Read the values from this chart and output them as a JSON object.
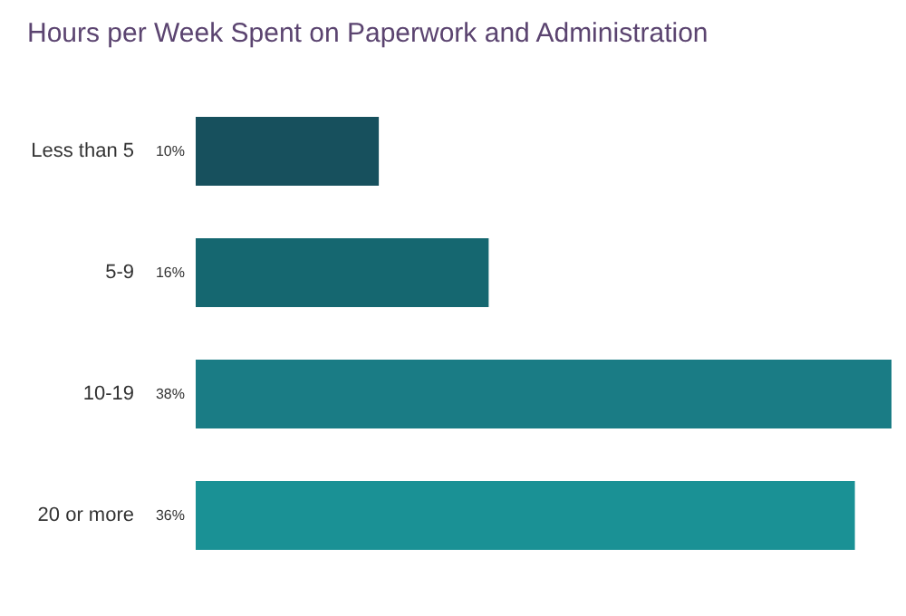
{
  "chart_data": {
    "type": "bar",
    "orientation": "horizontal",
    "title": "Hours per Week Spent on Paperwork and Administration",
    "categories": [
      "Less than 5",
      "5-9",
      "10-19",
      "20 or more"
    ],
    "values": [
      10,
      16,
      38,
      36
    ],
    "colors": [
      "#17505d",
      "#156770",
      "#1a7c85",
      "#1a9195"
    ],
    "value_labels": [
      "10%",
      "16%",
      "38%",
      "36%"
    ]
  }
}
